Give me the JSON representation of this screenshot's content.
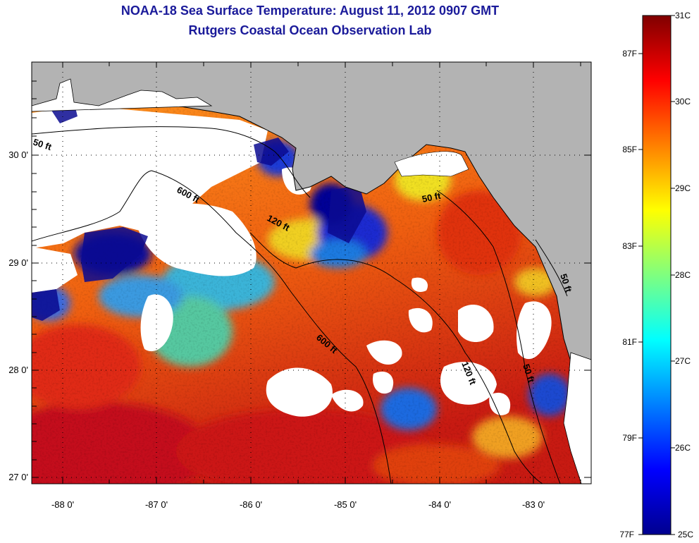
{
  "title_line1": "NOAA-18 Sea Surface Temperature:  August 11, 2012 0907 GMT",
  "title_line2": "Rutgers Coastal Ocean Observation Lab",
  "lat_ticks": [
    "30 0'",
    "29 0'",
    "28 0'",
    "27 0'"
  ],
  "lon_ticks": [
    "-88 0'",
    "-87 0'",
    "-86 0'",
    "-85 0'",
    "-84 0'",
    "-83 0'"
  ],
  "contour_labels": [
    "50 ft",
    "600 ft",
    "120 ft",
    "50 ft",
    "600 ft",
    "120 ft",
    "50 ft",
    "50 ft"
  ],
  "colorbar": {
    "celsius_labels": [
      "31C",
      "30C",
      "29C",
      "28C",
      "27C",
      "26C",
      "25C"
    ],
    "fahrenheit_labels": [
      "87F",
      "85F",
      "83F",
      "81F",
      "79F",
      "77F"
    ]
  },
  "colors": {
    "land": "#b3b3b3",
    "cloud": "#ffffff",
    "title": "#1a1a9a"
  }
}
